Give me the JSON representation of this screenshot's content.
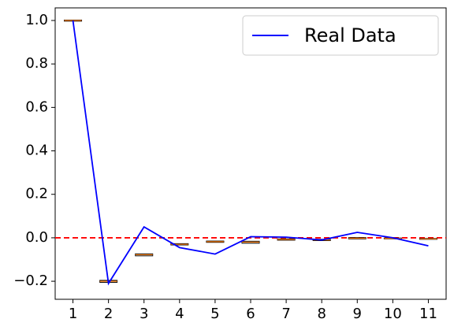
{
  "chart_data": {
    "type": "box",
    "x": [
      1,
      2,
      3,
      4,
      5,
      6,
      7,
      8,
      9,
      10,
      11
    ],
    "boxes": {
      "q1": [
        0.997,
        -0.205,
        -0.083,
        -0.033,
        -0.021,
        -0.025,
        -0.011,
        -0.013,
        -0.005,
        -0.005,
        -0.007
      ],
      "medians": [
        1.0,
        -0.2,
        -0.078,
        -0.03,
        -0.018,
        -0.02,
        -0.008,
        -0.01,
        -0.002,
        -0.003,
        -0.005
      ],
      "q3": [
        1.002,
        -0.196,
        -0.074,
        -0.027,
        -0.015,
        -0.016,
        -0.005,
        -0.007,
        0.001,
        -0.001,
        -0.003
      ],
      "color": "#000000",
      "median_color": "#ff7f0e"
    },
    "series": [
      {
        "name": "Real Data",
        "color": "#0000ff",
        "values": [
          1.0,
          -0.21,
          0.05,
          -0.045,
          -0.075,
          0.005,
          0.003,
          -0.01,
          0.025,
          0.0,
          -0.037
        ]
      }
    ],
    "hline": {
      "value": 0,
      "color": "#ff0000"
    },
    "xlim": [
      0.5,
      11.5
    ],
    "ylim": [
      -0.283,
      1.058
    ],
    "xticks": [
      1,
      2,
      3,
      4,
      5,
      6,
      7,
      8,
      9,
      10,
      11
    ],
    "yticks": [
      {
        "value": -0.2,
        "label": "−0.2"
      },
      {
        "value": 0,
        "label": "0.0"
      },
      {
        "value": 0.2,
        "label": "0.2"
      },
      {
        "value": 0.4,
        "label": "0.4"
      },
      {
        "value": 0.6,
        "label": "0.6"
      },
      {
        "value": 0.8,
        "label": "0.8"
      },
      {
        "value": 1.0,
        "label": "1.0"
      }
    ],
    "legend": "upper right"
  }
}
